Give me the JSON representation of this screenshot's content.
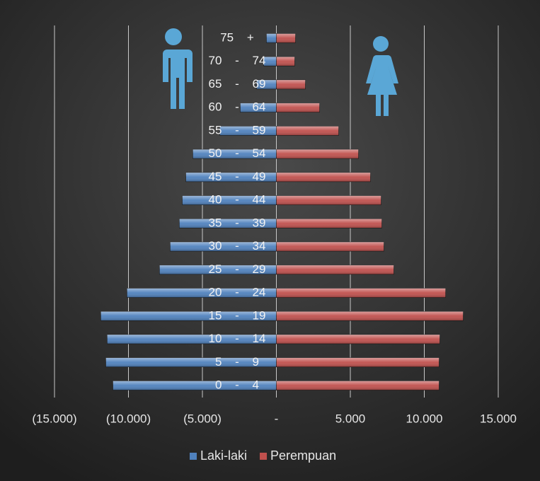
{
  "chart_data": {
    "type": "pyramid",
    "categories": [
      "0 - 4",
      "5 - 9",
      "10 - 14",
      "15 - 19",
      "20 - 24",
      "25 - 29",
      "30 - 34",
      "35 - 39",
      "40 - 44",
      "45 - 49",
      "50 - 54",
      "55 - 59",
      "60 - 64",
      "65 - 69",
      "70 - 74",
      "75 +"
    ],
    "series": [
      {
        "name": "Laki-laki",
        "color": "#4f81bd",
        "values": [
          -11050,
          -11530,
          -11440,
          -11870,
          -10100,
          -7900,
          -7180,
          -6560,
          -6360,
          -6120,
          -5650,
          -3830,
          -2440,
          -1340,
          -860,
          -670
        ]
      },
      {
        "name": "Perempuan",
        "color": "#c0504d",
        "values": [
          11000,
          11000,
          11050,
          12630,
          11440,
          7940,
          7270,
          7130,
          7080,
          6360,
          5550,
          4210,
          2920,
          1960,
          1240,
          1290
        ]
      }
    ],
    "xlim": [
      -15000,
      15000
    ],
    "xticks": [
      {
        "value": -15000,
        "label": "(15.000)"
      },
      {
        "value": -10000,
        "label": "(10.000)"
      },
      {
        "value": -5000,
        "label": "(5.000)"
      },
      {
        "value": 0,
        "label": "-"
      },
      {
        "value": 5000,
        "label": "5.000"
      },
      {
        "value": 10000,
        "label": "10.000"
      },
      {
        "value": 15000,
        "label": "15.000"
      }
    ],
    "grid": true,
    "legend": "bottom"
  }
}
